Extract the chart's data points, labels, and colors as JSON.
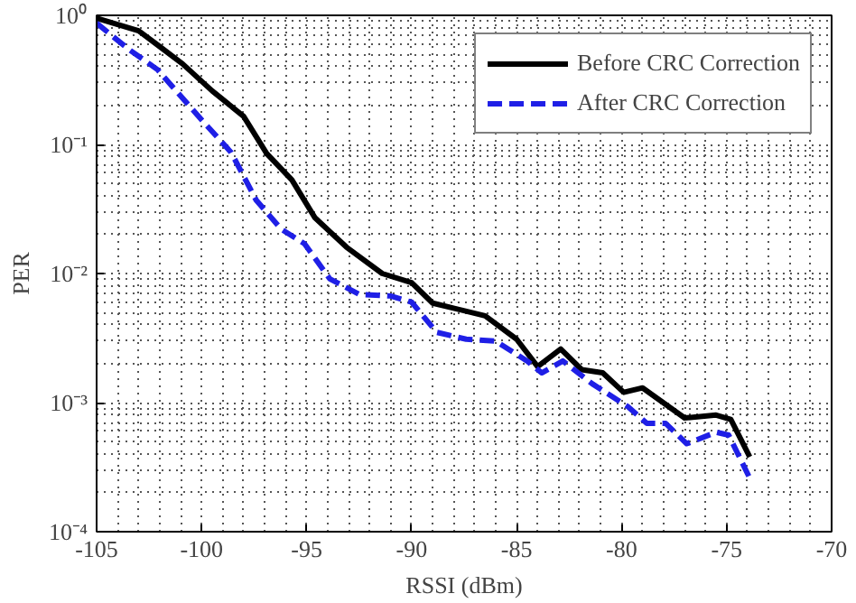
{
  "chart_data": {
    "type": "line",
    "xlabel": "RSSI (dBm)",
    "ylabel": "PER",
    "log": "y",
    "grid": true,
    "legend": "top right",
    "xlim": [
      -105,
      -70
    ],
    "xticks": [
      -105,
      -100,
      -95,
      -90,
      -85,
      -80,
      -75,
      -70
    ],
    "ylim": [
      0.0001,
      1
    ],
    "yticks": [
      {
        "value": 0.0001,
        "label": "10⁻⁴"
      },
      {
        "value": 0.001,
        "label": "10⁻³"
      },
      {
        "value": 0.01,
        "label": "10⁻²"
      },
      {
        "value": 0.1,
        "label": "10⁻¹"
      },
      {
        "value": 1,
        "label": "10⁰"
      }
    ],
    "series": [
      {
        "name": "Before CRC Correction",
        "color": "#000000",
        "line_style": "solid",
        "x": [
          -105,
          -103,
          -102.1,
          -100.9,
          -99.5,
          -98,
          -96.9,
          -95.7,
          -94.6,
          -93.1,
          -91.4,
          -90,
          -89,
          -86.5,
          -85,
          -84,
          -82.9,
          -81.9,
          -80.9,
          -79.9,
          -79,
          -77,
          -75.5,
          -74.8,
          -73.9
        ],
        "values": [
          0.95,
          0.76,
          0.59,
          0.42,
          0.26,
          0.165,
          0.085,
          0.053,
          0.027,
          0.016,
          0.01,
          0.0085,
          0.0059,
          0.0047,
          0.0031,
          0.0019,
          0.0026,
          0.0018,
          0.0017,
          0.0012,
          0.0013,
          0.00076,
          0.0008,
          0.00074,
          0.00038
        ]
      },
      {
        "name": "After CRC Correction",
        "color": "#1f1fe6",
        "line_style": "dashed",
        "x": [
          -105,
          -103.5,
          -102.1,
          -100,
          -98.6,
          -97.4,
          -96.2,
          -95.1,
          -93.9,
          -92.5,
          -91,
          -90,
          -88.8,
          -87.4,
          -86,
          -84.5,
          -83.8,
          -82.8,
          -81.4,
          -79.7,
          -78.8,
          -77.9,
          -76.9,
          -75.5,
          -74.9,
          -73.9
        ],
        "values": [
          0.87,
          0.55,
          0.38,
          0.155,
          0.087,
          0.037,
          0.022,
          0.017,
          0.0091,
          0.0069,
          0.0067,
          0.006,
          0.0035,
          0.0031,
          0.003,
          0.0021,
          0.0017,
          0.0021,
          0.0014,
          0.00093,
          0.00069,
          0.00069,
          0.00048,
          0.00059,
          0.00056,
          0.00026
        ]
      }
    ]
  }
}
